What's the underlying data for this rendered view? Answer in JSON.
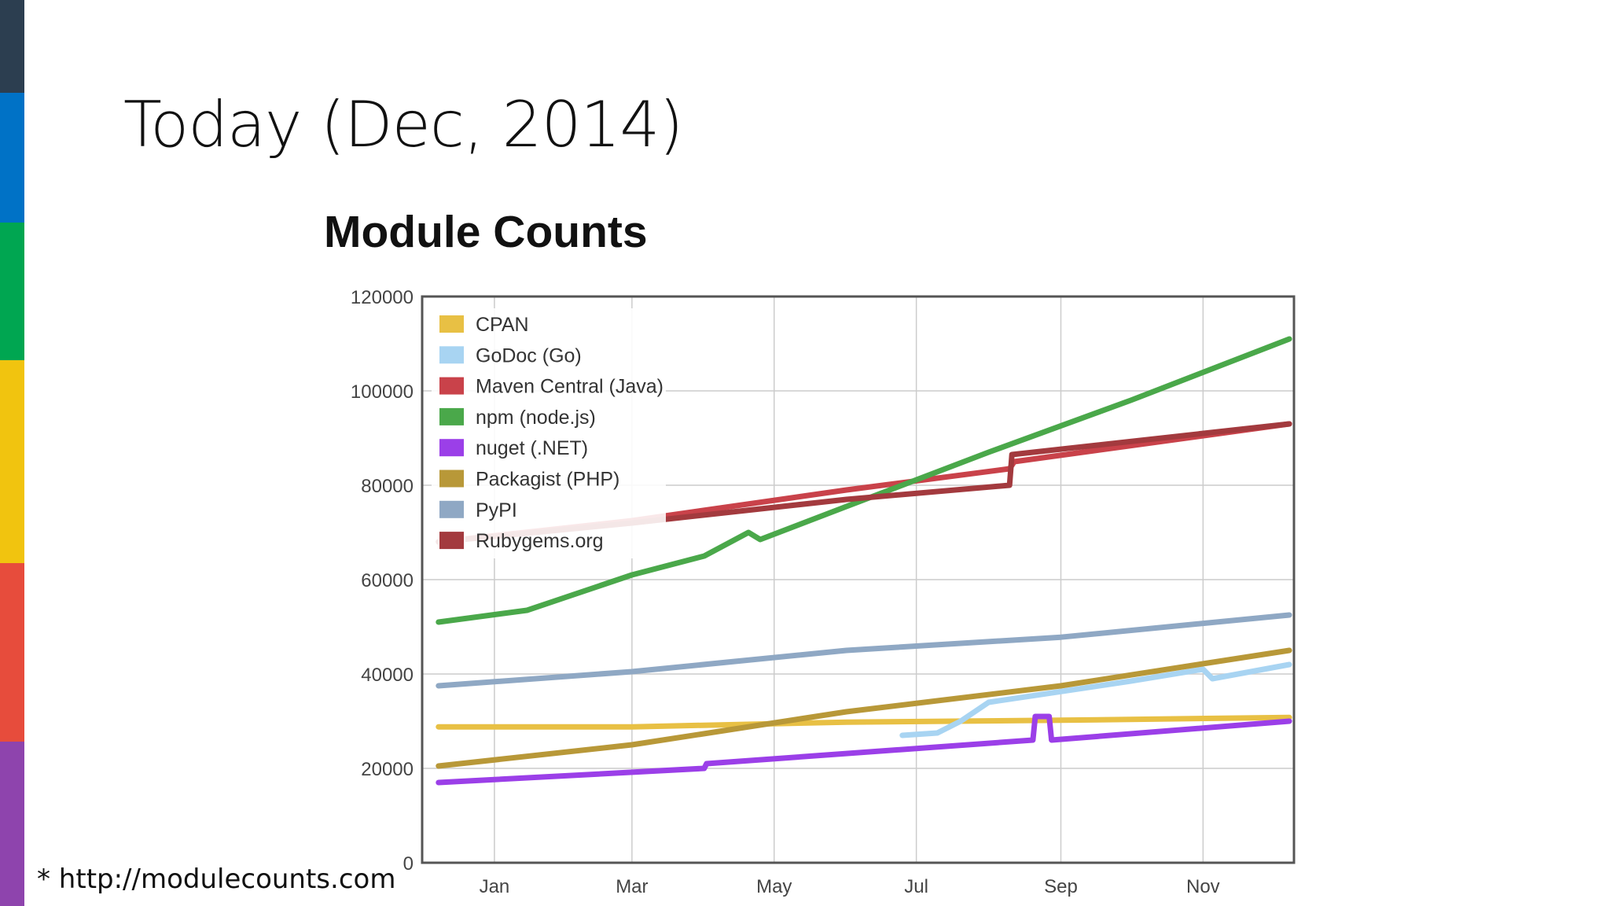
{
  "slide": {
    "title": "Today (Dec, 2014)",
    "source_note": "* http://modulecounts.com",
    "stripe_colors": [
      "#2c3e50",
      "#0072c6",
      "#00a651",
      "#f1c40f",
      "#e74c3c",
      "#8e44ad"
    ]
  },
  "chart_data": {
    "type": "line",
    "title": "Module Counts",
    "xlabel": "",
    "ylabel": "",
    "x_range": [
      "2013-12",
      "2014-12"
    ],
    "x_ticks": [
      "Jan",
      "Mar",
      "May",
      "Jul",
      "Sep",
      "Nov"
    ],
    "ylim": [
      0,
      120000
    ],
    "y_ticks": [
      "0",
      "20000",
      "40000",
      "60000",
      "80000",
      "100000",
      "120000"
    ],
    "grid": true,
    "legend_position": "top-left",
    "series": [
      {
        "name": "CPAN",
        "color": "#e8c044",
        "x": [
          "2013-12-08",
          "2014-03-01",
          "2014-06-01",
          "2014-09-01",
          "2014-12-08"
        ],
        "y": [
          28800,
          28800,
          29800,
          30200,
          30800
        ]
      },
      {
        "name": "GoDoc (Go)",
        "color": "#a8d4f2",
        "x": [
          "2014-06-25",
          "2014-07-10",
          "2014-07-20",
          "2014-08-01",
          "2014-10-01",
          "2014-11-01",
          "2014-11-05",
          "2014-12-08"
        ],
        "y": [
          27000,
          27500,
          30000,
          34000,
          38500,
          41000,
          39000,
          42000
        ]
      },
      {
        "name": "Maven Central (Java)",
        "color": "#c9424a",
        "x": [
          "2013-12-08",
          "2014-03-01",
          "2014-06-01",
          "2014-08-10",
          "2014-08-12",
          "2014-12-08"
        ],
        "y": [
          68000,
          72500,
          79000,
          83500,
          85000,
          93000
        ]
      },
      {
        "name": "npm (node.js)",
        "color": "#4aa84a",
        "x": [
          "2013-12-08",
          "2014-01-15",
          "2014-03-01",
          "2014-04-01",
          "2014-04-20",
          "2014-04-25",
          "2014-06-01",
          "2014-08-01",
          "2014-10-01",
          "2014-12-08"
        ],
        "y": [
          51000,
          53500,
          61000,
          65000,
          70000,
          68500,
          75500,
          87000,
          98000,
          111000
        ]
      },
      {
        "name": "nuget (.NET)",
        "color": "#9b3fe8",
        "x": [
          "2013-12-08",
          "2014-04-01",
          "2014-04-02",
          "2014-08-20",
          "2014-08-21",
          "2014-08-27",
          "2014-08-28",
          "2014-12-08"
        ],
        "y": [
          17000,
          20000,
          21000,
          26000,
          31000,
          31000,
          26000,
          30000
        ]
      },
      {
        "name": "Packagist (PHP)",
        "color": "#b89838",
        "x": [
          "2013-12-08",
          "2014-03-01",
          "2014-06-01",
          "2014-09-01",
          "2014-12-08"
        ],
        "y": [
          20500,
          25000,
          32000,
          37500,
          45000
        ]
      },
      {
        "name": "PyPI",
        "color": "#8fa8c4",
        "x": [
          "2013-12-08",
          "2014-03-01",
          "2014-06-01",
          "2014-09-01",
          "2014-12-08"
        ],
        "y": [
          37500,
          40500,
          45000,
          47800,
          52500
        ]
      },
      {
        "name": "Rubygems.org",
        "color": "#a33a3e",
        "x": [
          "2013-12-08",
          "2014-03-01",
          "2014-06-01",
          "2014-08-10",
          "2014-08-11",
          "2014-12-08"
        ],
        "y": [
          68000,
          72000,
          77000,
          80000,
          86500,
          93000
        ]
      }
    ]
  }
}
